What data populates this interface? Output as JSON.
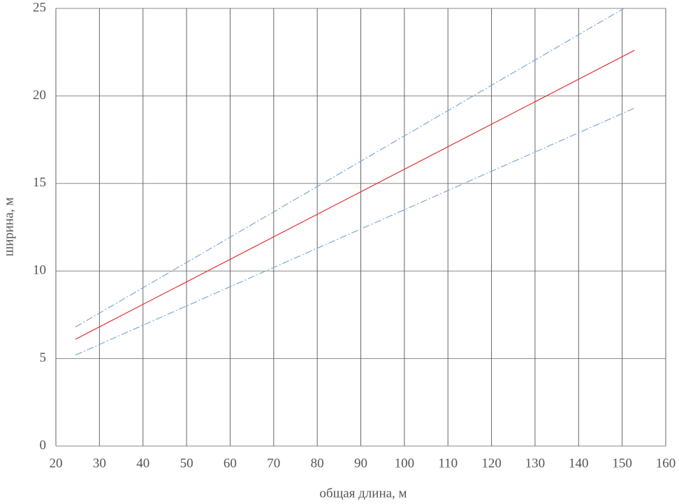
{
  "chart_data": {
    "type": "line",
    "x_label": "общая длина, м",
    "y_label": "ширина, м",
    "xlim": [
      20,
      160
    ],
    "xticks": [
      20,
      30,
      40,
      50,
      60,
      70,
      80,
      90,
      100,
      110,
      120,
      130,
      140,
      150,
      160
    ],
    "ylim": [
      0,
      25
    ],
    "yticks": [
      0,
      5,
      10,
      15,
      20,
      25
    ],
    "grid": true,
    "series": [
      {
        "color": "#e03030",
        "dash": false,
        "x": [
          24.5,
          152.8
        ],
        "values": [
          6.1,
          22.6
        ]
      },
      {
        "color": "#7fa8d0",
        "dash": true,
        "x": [
          24.5,
          150.4
        ],
        "values": [
          6.8,
          25.0
        ]
      },
      {
        "color": "#7fa8d0",
        "dash": true,
        "x": [
          24.5,
          152.8
        ],
        "values": [
          5.2,
          19.3
        ]
      }
    ]
  }
}
